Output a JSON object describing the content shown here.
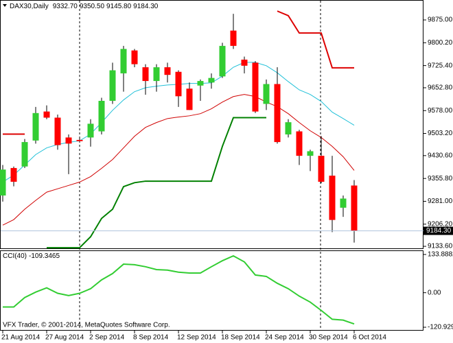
{
  "chart_data": [
    {
      "type": "candlestick",
      "title": "DAX30,Daily",
      "header_values": [
        "9332.70",
        "9350.50",
        "9145.80",
        "9184.30"
      ],
      "categories": [
        "21 Aug 2014",
        null,
        null,
        null,
        "27 Aug 2014",
        null,
        null,
        null,
        "2 Sep 2014",
        null,
        null,
        null,
        "8 Sep 2014",
        null,
        null,
        null,
        "12 Sep 2014",
        null,
        null,
        null,
        "18 Sep 2014",
        null,
        null,
        null,
        "24 Sep 2014",
        null,
        null,
        null,
        "30 Sep 2014",
        null,
        null,
        null,
        "6 Oct 2014"
      ],
      "open": [
        9300,
        9390,
        9395,
        9480,
        9575,
        9555,
        9490,
        9482,
        9490,
        9510,
        9610,
        9700,
        9775,
        9720,
        9675,
        9720,
        9705,
        9650,
        9660,
        9670,
        9690,
        9840,
        9745,
        9735,
        9600,
        9665,
        9500,
        9510,
        9430,
        9430,
        9365,
        9260,
        9332.7
      ],
      "high": [
        9400,
        9395,
        9485,
        9590,
        9595,
        9565,
        9500,
        9490,
        9550,
        9620,
        9735,
        9790,
        9780,
        9730,
        9730,
        9735,
        9710,
        9670,
        9680,
        9700,
        9800,
        9895,
        9755,
        9740,
        9680,
        9720,
        9550,
        9515,
        9450,
        9495,
        9430,
        9300,
        9350.5
      ],
      "low": [
        9280,
        9330,
        9390,
        9470,
        9550,
        9450,
        9370,
        9475,
        9460,
        9500,
        9600,
        9640,
        9720,
        9630,
        9640,
        9670,
        9590,
        9580,
        9610,
        9650,
        9685,
        9780,
        9700,
        9570,
        9580,
        9470,
        9490,
        9400,
        9380,
        9340,
        9180,
        9230,
        9145.8
      ],
      "close": [
        9385,
        9345,
        9475,
        9570,
        9555,
        9465,
        9470,
        9478,
        9535,
        9610,
        9710,
        9780,
        9730,
        9675,
        9720,
        9695,
        9625,
        9580,
        9675,
        9685,
        9790,
        9790,
        9725,
        9575,
        9665,
        9475,
        9540,
        9430,
        9445,
        9345,
        9220,
        9290,
        9184.3
      ],
      "up_color": "#32cd32",
      "down_color": "#ff0000",
      "wick_color": "#000000",
      "series": [
        {
          "color": "#20c0d8",
          "width": 1,
          "values": [
            9344,
            9367,
            9400,
            9434,
            9456,
            9467,
            9474,
            9479,
            9501,
            9539,
            9579,
            9613,
            9640,
            9653,
            9658,
            9662,
            9664,
            9667,
            9667,
            9669,
            9691,
            9720,
            9736,
            9736,
            9725,
            9702,
            9673,
            9646,
            9631,
            9608,
            9573,
            9552,
            9530
          ]
        },
        {
          "color": "#d00000",
          "width": 1,
          "values": [
            9203,
            9221,
            9255,
            9284,
            9311,
            9322,
            9333,
            9344,
            9362,
            9389,
            9418,
            9456,
            9494,
            9523,
            9539,
            9552,
            9557,
            9561,
            9568,
            9584,
            9606,
            9624,
            9631,
            9624,
            9606,
            9591,
            9568,
            9539,
            9512,
            9490,
            9461,
            9427,
            9382
          ]
        },
        {
          "color": "#008000",
          "width": 2,
          "values": [
            null,
            null,
            null,
            null,
            9129,
            9129,
            9129,
            9129,
            9165,
            9225,
            9255,
            9329,
            9342,
            9347,
            9347,
            9347,
            9347,
            9347,
            9347,
            9347,
            9461,
            9555,
            9555,
            9555,
            9555,
            null,
            null,
            null,
            null,
            null,
            null,
            null,
            null
          ]
        },
        {
          "color": "#dd0000",
          "width": 2,
          "values": [
            9501,
            9501,
            9501,
            null,
            null,
            null,
            null,
            null,
            null,
            null,
            null,
            null,
            null,
            null,
            null,
            null,
            null,
            null,
            null,
            null,
            null,
            null,
            null,
            null,
            null,
            9904,
            9889,
            9832,
            9832,
            9832,
            9718,
            9718,
            9718
          ]
        }
      ],
      "last_price": {
        "value": 9184.3,
        "label": "9184.30"
      },
      "ylim": [
        9127,
        9938
      ],
      "yticks": [
        {
          "value": 9875,
          "label": "9875.00"
        },
        {
          "value": 9800.2,
          "label": "9800.20"
        },
        {
          "value": 9725.4,
          "label": "9725.40"
        },
        {
          "value": 9652.8,
          "label": "9652.80"
        },
        {
          "value": 9578,
          "label": "9578.00"
        },
        {
          "value": 9503.2,
          "label": "9503.20"
        },
        {
          "value": 9430.6,
          "label": "9430.60"
        },
        {
          "value": 9355.8,
          "label": "9355.80"
        },
        {
          "value": 9281,
          "label": "9281.00"
        },
        {
          "value": 9206.2,
          "label": "9206.20"
        },
        {
          "value": 9133.6,
          "label": "9133.60"
        }
      ]
    },
    {
      "type": "line",
      "title": "CCI(40)",
      "current_label": "-109.3465",
      "series": [
        {
          "color": "#32cd32",
          "width": 2,
          "values": [
            -50,
            -50,
            -17,
            2,
            17,
            -2,
            -10,
            -2,
            14,
            45,
            67,
            100,
            98,
            91,
            81,
            79,
            72,
            69,
            69,
            91,
            112,
            129,
            108,
            62,
            57,
            33,
            14,
            -12,
            -33,
            -62,
            -93,
            -96,
            -109.3465
          ]
        }
      ],
      "ylim": [
        -130.5,
        145.8
      ],
      "yticks": [
        133.8882,
        {
          "value": 0,
          "label": "0.00"
        },
        -120.9291
      ],
      "footer": "VFX Trader, © 2001-2014, MetaQuotes Software Corp."
    }
  ]
}
